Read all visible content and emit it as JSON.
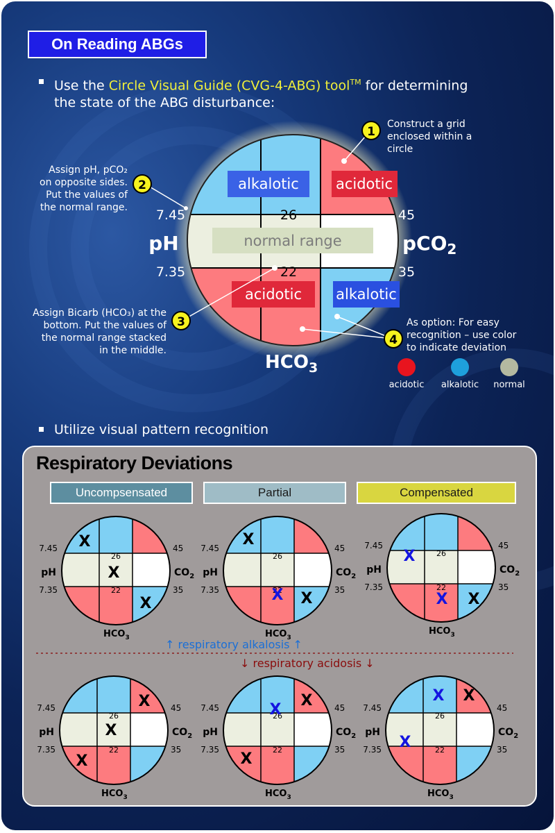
{
  "title": "On Reading ABGs",
  "bullet1": {
    "prefix": "Use the ",
    "tool": "Circle Visual Guide (CVG-4-ABG) tool",
    "tm": "TM",
    "suffix": " for determining",
    "line2": "the state of the ABG disturbance:"
  },
  "main_circle": {
    "cells": {
      "top_left": "alkalotic",
      "top_right": "acidotic",
      "middle": "normal range",
      "bottom_left": "acidotic",
      "bottom_right": "alkalotic"
    },
    "ph_label": "pH",
    "pco2_label": "pCO",
    "pco2_sub": "2",
    "hco3_label": "HCO",
    "hco3_sub": "3",
    "ph_high": "7.45",
    "ph_low": "7.35",
    "co2_high": "45",
    "co2_low": "35",
    "hco3_high": "26",
    "hco3_low": "22"
  },
  "steps": [
    {
      "num": "1",
      "text": [
        "Construct a grid",
        "enclosed within a",
        "circle"
      ]
    },
    {
      "num": "2",
      "text": [
        "Assign pH, pCO₂",
        "on opposite sides.",
        "Put the values of",
        "the normal range."
      ]
    },
    {
      "num": "3",
      "text": [
        "Assign Bicarb (HCO₃) at the",
        "bottom. Put the values of",
        "the normal range stacked",
        "in the middle."
      ]
    },
    {
      "num": "4",
      "text": [
        "As option: For easy",
        "recognition – use color",
        "to indicate deviation"
      ]
    }
  ],
  "legend": [
    {
      "label": "acidotic",
      "color": "#e8141e"
    },
    {
      "label": "alkalotic",
      "color": "#1ea0dc"
    },
    {
      "label": "normal",
      "color": "#b4b9a0"
    }
  ],
  "bullet2": "Utilize visual pattern recognition",
  "respiratory": {
    "title": "Respiratory Deviations",
    "columns": [
      "Uncompsensated",
      "Partial",
      "Compensated"
    ],
    "alkalosis_label": "↑ respiratory alkalosis ↑",
    "acidosis_label": "↓ respiratory acidosis ↓"
  },
  "mini": {
    "ph": "pH",
    "co2": "CO",
    "co2_sub": "2",
    "hco3": "HCO",
    "hco3_sub": "3",
    "ph_high": "7.45",
    "ph_low": "7.35",
    "co2_high": "45",
    "co2_low": "35",
    "hco3_high": "26",
    "hco3_low": "22",
    "mark": "X"
  },
  "colors": {
    "acidotic_cell": "#fd7b7f",
    "alkalotic_cell": "#7fd0f4",
    "normal_cell": "#ecefe0",
    "black_mark": "#000000",
    "blue_mark": "#1414e0"
  }
}
